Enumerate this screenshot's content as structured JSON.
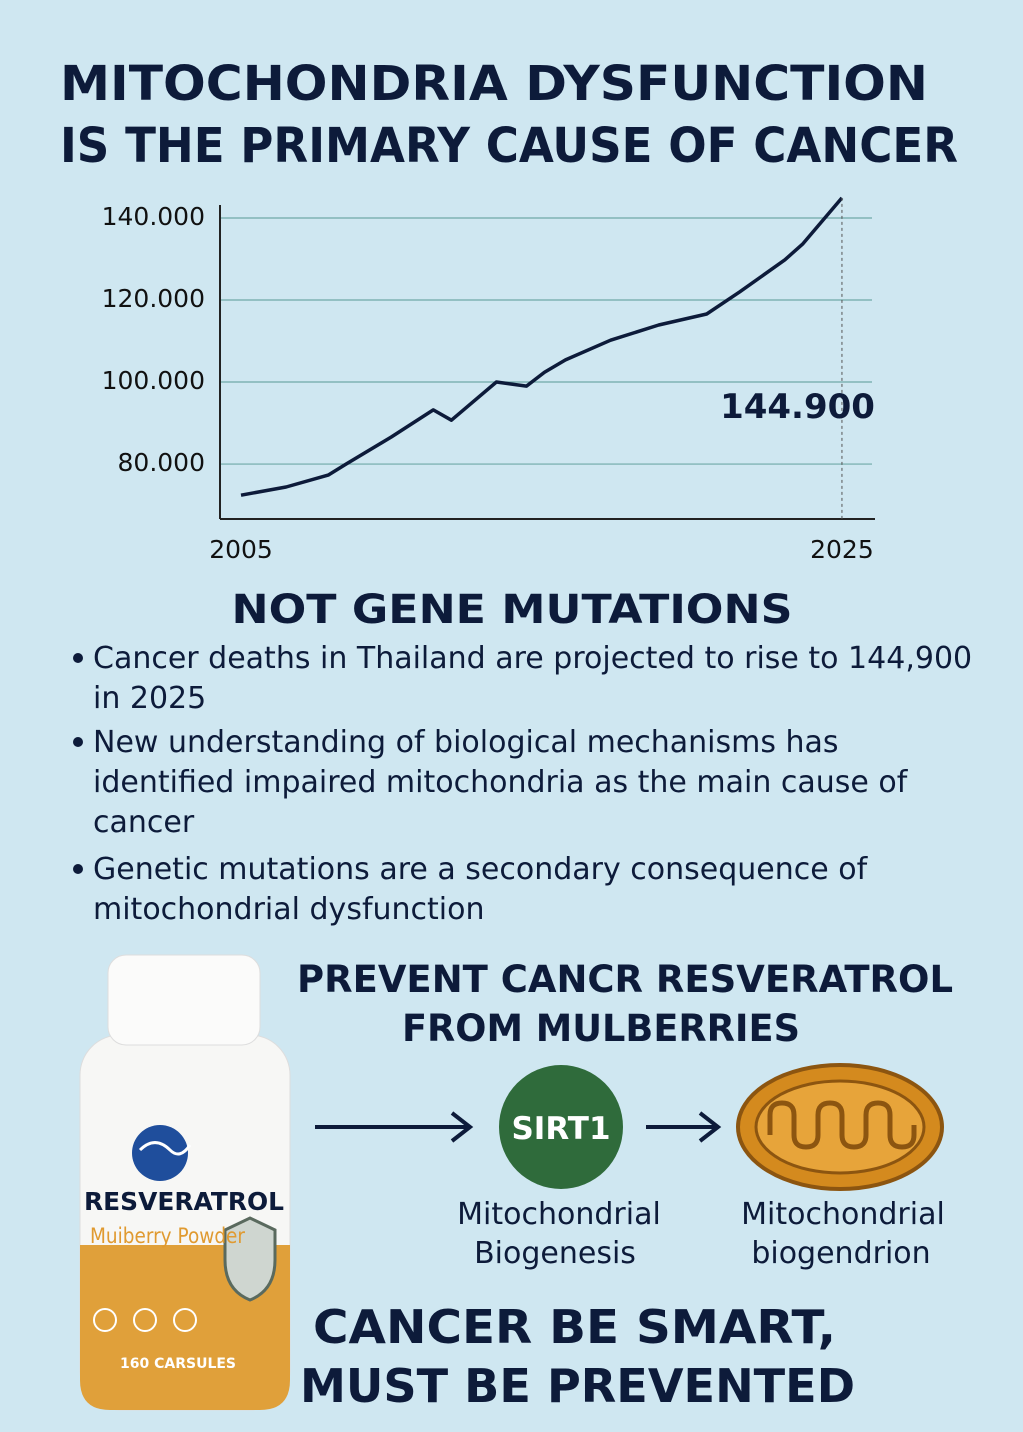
{
  "header": {
    "lines": [
      "MITOCHONDRIA DYSFUNCTION",
      "IS THE PRIMARY CAUSE OF CANCER"
    ]
  },
  "chart_data": {
    "type": "line",
    "x": [
      2005,
      2006.5,
      2007.9,
      2008.5,
      2010,
      2011.4,
      2012,
      2013.5,
      2014.5,
      2015.1,
      2015.8,
      2017.3,
      2018.9,
      2020.5,
      2021.6,
      2023.1,
      2023.7,
      2025
    ],
    "values": [
      72400,
      74400,
      77300,
      80000,
      86600,
      93200,
      90700,
      100000,
      99000,
      102400,
      105400,
      110200,
      113900,
      116600,
      122000,
      129800,
      133700,
      144900
    ],
    "value_labels": [
      null,
      null,
      null,
      null,
      null,
      null,
      null,
      null,
      null,
      null,
      null,
      null,
      null,
      null,
      null,
      null,
      null,
      "144.900"
    ],
    "color": "#0d1b3a",
    "xlim": [
      2004.3,
      2026.1
    ],
    "xticks": [
      2005,
      2025
    ],
    "ylim": [
      66600,
      145000
    ],
    "yticks": [
      {
        "value": 80000,
        "label": "80.000"
      },
      {
        "value": 100000,
        "label": "100.000"
      },
      {
        "value": 120000,
        "label": "120.000"
      },
      {
        "value": 140000,
        "label": "140.000"
      }
    ],
    "grid": true
  },
  "subheading": "NOT GENE MUTATIONS",
  "bullets": [
    [
      "Cancer deaths in Thailand are projected to rise to 144,900",
      "in 2025"
    ],
    [
      "New understanding of biological mechanisms has",
      "identified impaired mitochondria as the main cause of",
      "cancer"
    ],
    [
      "Genetic mutations are a secondary consequence of",
      "mitochondrial dysfunction"
    ]
  ],
  "product": {
    "heading": [
      "PREVENT CANCR RESVERATROL",
      "FROM MULBERRIES"
    ],
    "bottle": {
      "brand": "RESVERATROL",
      "subtitle": "Muiberry Powder",
      "count": "160 CARSULES"
    },
    "flow": [
      {
        "label": "SIRT1",
        "caption": [
          "Mitochondrial",
          "Biogenesis"
        ]
      },
      {
        "caption": [
          "Mitochondrial",
          "biogendrion"
        ]
      }
    ]
  },
  "slogan": [
    "CANCER BE SMART,",
    "MUST BE PREVENTED"
  ]
}
